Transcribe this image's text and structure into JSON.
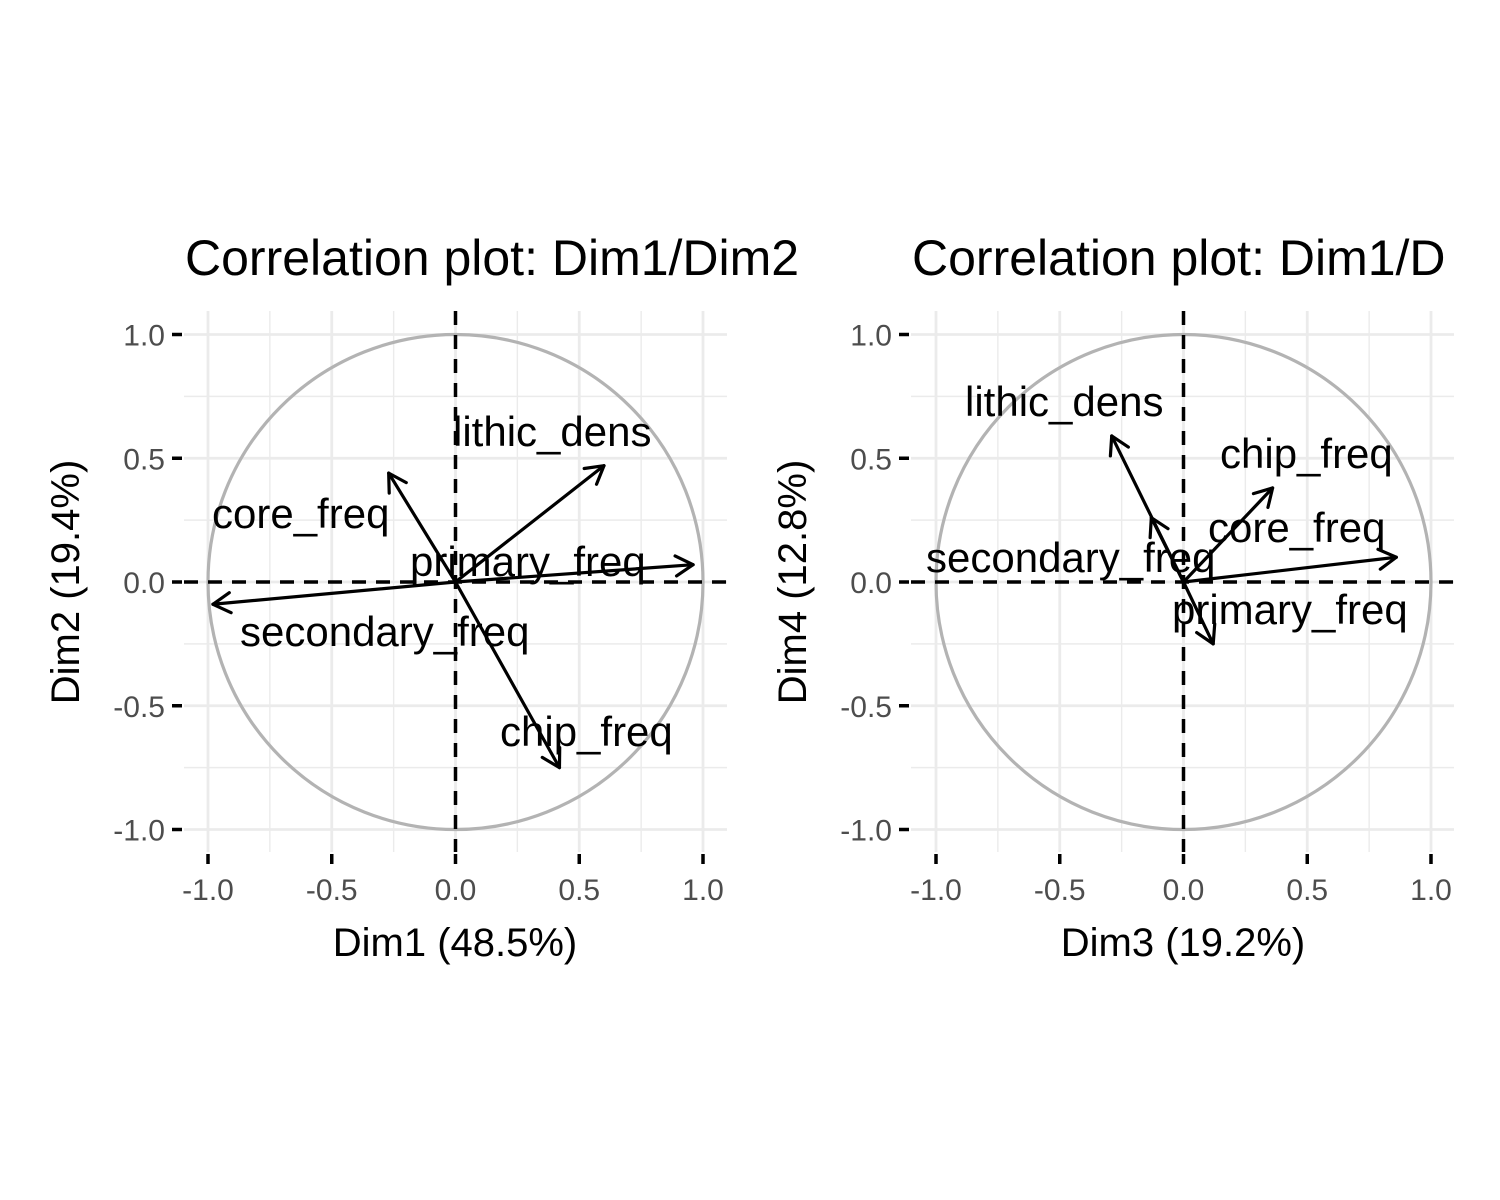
{
  "chart_data": [
    {
      "type": "scatter",
      "title": "Correlation plot: Dim1/Dim2",
      "xlabel": "Dim1 (48.5%)",
      "ylabel": "Dim2 (19.4%)",
      "xlim": [
        -1.0,
        1.0
      ],
      "ylim": [
        -1.0,
        1.0
      ],
      "xticks": [
        "-1.0",
        "-0.5",
        "0.0",
        "0.5",
        "1.0"
      ],
      "yticks": [
        "-1.0",
        "-0.5",
        "0.0",
        "0.5",
        "1.0"
      ],
      "grid": true,
      "unit_circle": true,
      "variables": [
        {
          "name": "lithic_dens",
          "x": 0.6,
          "y": 0.47
        },
        {
          "name": "core_freq",
          "x": -0.27,
          "y": 0.44
        },
        {
          "name": "primary_freq",
          "x": 0.96,
          "y": 0.07
        },
        {
          "name": "secondary_freq",
          "x": -0.98,
          "y": -0.09
        },
        {
          "name": "chip_freq",
          "x": 0.42,
          "y": -0.75
        }
      ]
    },
    {
      "type": "scatter",
      "title": "Correlation plot: Dim1/D",
      "xlabel": "Dim3 (19.2%)",
      "ylabel": "Dim4 (12.8%)",
      "xlim": [
        -1.0,
        1.0
      ],
      "ylim": [
        -1.0,
        1.0
      ],
      "xticks": [
        "-1.0",
        "-0.5",
        "0.0",
        "0.5",
        "1.0"
      ],
      "yticks": [
        "-1.0",
        "-0.5",
        "0.0",
        "0.5",
        "1.0"
      ],
      "grid": true,
      "unit_circle": true,
      "variables": [
        {
          "name": "lithic_dens",
          "x": -0.29,
          "y": 0.59
        },
        {
          "name": "chip_freq",
          "x": 0.36,
          "y": 0.38
        },
        {
          "name": "core_freq",
          "x": 0.86,
          "y": 0.1
        },
        {
          "name": "secondary_freq",
          "x": -0.13,
          "y": 0.26
        },
        {
          "name": "primary_freq",
          "x": 0.12,
          "y": -0.25
        }
      ]
    }
  ]
}
